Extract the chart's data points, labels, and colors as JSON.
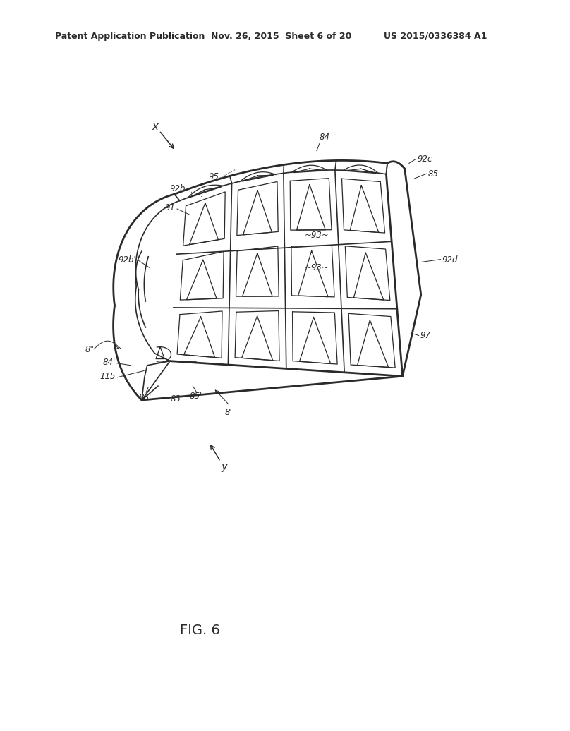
{
  "background_color": "#ffffff",
  "header_left": "Patent Application Publication",
  "header_center": "Nov. 26, 2015  Sheet 6 of 20",
  "header_right": "US 2015/0336384 A1",
  "figure_label": "FIG. 6",
  "header_fontsize": 9,
  "label_fontsize": 8.5,
  "figure_label_fontsize": 14,
  "axis_label_fontsize": 11,
  "line_color": "#2a2a2a",
  "text_color": "#2a2a2a",
  "line_color_light": "#555555"
}
